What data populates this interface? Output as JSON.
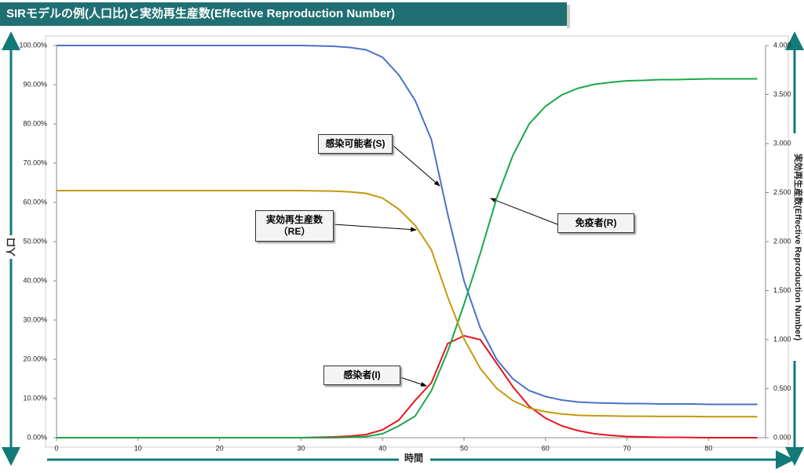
{
  "chart_data": {
    "type": "line",
    "title": "SIRモデルの例(人口比)と実効再生産数(Effective Reproduction Number)",
    "x_label": "時間",
    "y_label": "人口",
    "y2_label": "実効再生産数(Effective Reproduction Number)",
    "x": [
      0,
      2,
      4,
      6,
      8,
      10,
      12,
      14,
      16,
      18,
      20,
      22,
      24,
      26,
      28,
      30,
      32,
      34,
      36,
      38,
      40,
      42,
      44,
      46,
      48,
      50,
      52,
      54,
      56,
      58,
      60,
      62,
      64,
      66,
      68,
      70,
      72,
      74,
      76,
      78,
      80,
      82,
      84,
      86
    ],
    "series": [
      {
        "name": "感染可能者(S)",
        "color": "#4a72c8",
        "values": [
          100,
          100,
          100,
          100,
          100,
          100,
          100,
          100,
          100,
          100,
          100,
          100,
          100,
          100,
          100,
          100,
          99.9,
          99.8,
          99.5,
          98.9,
          97,
          92.5,
          86,
          76,
          57,
          40,
          28,
          20,
          15,
          12,
          10.5,
          9.6,
          9.1,
          8.9,
          8.8,
          8.7,
          8.7,
          8.6,
          8.6,
          8.6,
          8.5,
          8.5,
          8.5,
          8.5
        ]
      },
      {
        "name": "感染者(I)",
        "color": "#e8141c",
        "values": [
          0,
          0,
          0,
          0,
          0,
          0,
          0,
          0,
          0,
          0,
          0,
          0,
          0,
          0,
          0,
          0,
          0.1,
          0.2,
          0.4,
          0.8,
          2,
          4.5,
          9.5,
          14,
          24,
          26,
          25,
          19,
          13,
          8,
          5,
          3,
          1.8,
          1,
          0.6,
          0.3,
          0.2,
          0.1,
          0.1,
          0.05,
          0,
          0,
          0,
          0
        ]
      },
      {
        "name": "免疫者(R)",
        "color": "#1aa84a",
        "values": [
          0,
          0,
          0,
          0,
          0,
          0,
          0,
          0,
          0,
          0,
          0,
          0,
          0,
          0,
          0,
          0,
          0,
          0,
          0.1,
          0.3,
          1,
          3,
          5.5,
          12,
          22,
          34,
          47,
          61,
          72,
          80,
          84.5,
          87.4,
          89.1,
          90.1,
          90.6,
          91,
          91.1,
          91.3,
          91.3,
          91.4,
          91.5,
          91.5,
          91.5,
          91.5
        ]
      },
      {
        "name": "実効再生産数（RE）",
        "color": "#c49a0c",
        "axis": "y2",
        "values": [
          2.52,
          2.52,
          2.52,
          2.52,
          2.52,
          2.52,
          2.52,
          2.52,
          2.52,
          2.52,
          2.52,
          2.52,
          2.52,
          2.52,
          2.52,
          2.52,
          2.517,
          2.515,
          2.507,
          2.492,
          2.444,
          2.331,
          2.167,
          1.915,
          1.436,
          1.008,
          0.706,
          0.504,
          0.378,
          0.302,
          0.265,
          0.242,
          0.229,
          0.224,
          0.222,
          0.219,
          0.219,
          0.217,
          0.217,
          0.217,
          0.214,
          0.214,
          0.214,
          0.214
        ]
      }
    ],
    "xlim": [
      0,
      87
    ],
    "xticks": [
      0,
      10,
      20,
      30,
      40,
      50,
      60,
      70,
      80
    ],
    "ylim": [
      0,
      100
    ],
    "yticks": [
      {
        "value": 0,
        "label": "0.00%"
      },
      {
        "value": 10,
        "label": "10.00%"
      },
      {
        "value": 20,
        "label": "20.00%"
      },
      {
        "value": 30,
        "label": "30.00%"
      },
      {
        "value": 40,
        "label": "40.00%"
      },
      {
        "value": 50,
        "label": "50.00%"
      },
      {
        "value": 60,
        "label": "60.00%"
      },
      {
        "value": 70,
        "label": "70.00%"
      },
      {
        "value": 80,
        "label": "80.00%"
      },
      {
        "value": 90,
        "label": "90.00%"
      },
      {
        "value": 100,
        "label": "100.00%"
      }
    ],
    "y2lim": [
      0,
      4
    ],
    "y2ticks": [
      {
        "value": 0,
        "label": "0.000"
      },
      {
        "value": 0.5,
        "label": "0.500"
      },
      {
        "value": 1,
        "label": "1.000"
      },
      {
        "value": 1.5,
        "label": "1.500"
      },
      {
        "value": 2,
        "label": "2.000"
      },
      {
        "value": 2.5,
        "label": "2.500"
      },
      {
        "value": 3,
        "label": "3.000"
      },
      {
        "value": 3.5,
        "label": "3.500"
      },
      {
        "value": 4,
        "label": "4.000"
      }
    ],
    "grid": false
  }
}
